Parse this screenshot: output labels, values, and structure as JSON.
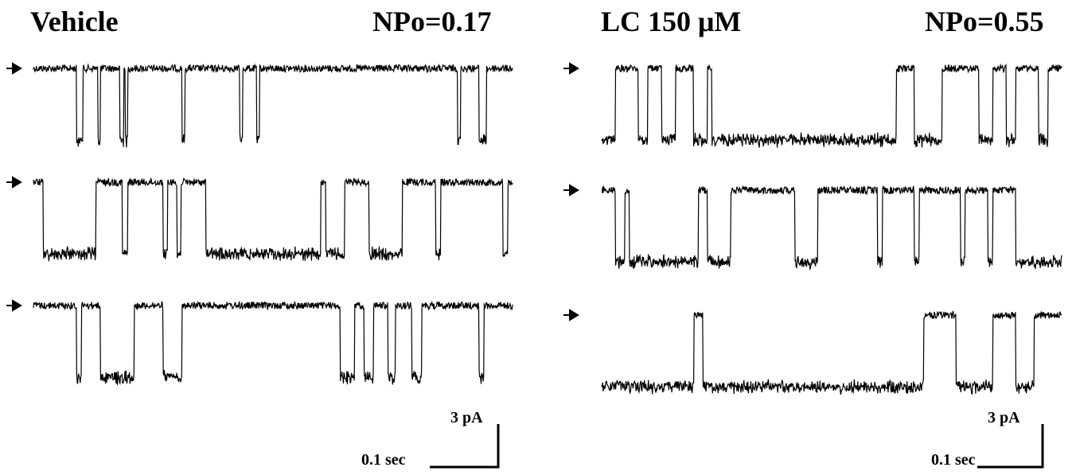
{
  "panels": [
    {
      "condition": "Vehicle",
      "npo_label": "NPo=0.17",
      "scale_current": "3 pA",
      "scale_time": "0.1 sec",
      "sweeps": [
        {
          "open_fraction": 0.1,
          "events": [
            [
              0.09,
              0.013
            ],
            [
              0.134,
              0.006
            ],
            [
              0.18,
              0.008
            ],
            [
              0.192,
              0.005
            ],
            [
              0.31,
              0.006
            ],
            [
              0.43,
              0.007
            ],
            [
              0.466,
              0.006
            ],
            [
              0.885,
              0.006
            ],
            [
              0.93,
              0.016
            ]
          ]
        },
        {
          "open_fraction": 0.4,
          "events": [
            [
              0.02,
              0.11
            ],
            [
              0.185,
              0.012
            ],
            [
              0.27,
              0.01
            ],
            [
              0.3,
              0.008
            ],
            [
              0.36,
              0.24
            ],
            [
              0.56,
              0.01
            ],
            [
              0.61,
              0.04
            ],
            [
              0.7,
              0.07
            ],
            [
              0.84,
              0.01
            ],
            [
              0.98,
              0.01
            ]
          ]
        },
        {
          "open_fraction": 0.25,
          "events": [
            [
              0.09,
              0.01
            ],
            [
              0.14,
              0.07
            ],
            [
              0.27,
              0.04
            ],
            [
              0.64,
              0.03
            ],
            [
              0.69,
              0.02
            ],
            [
              0.74,
              0.015
            ],
            [
              0.79,
              0.02
            ],
            [
              0.93,
              0.01
            ]
          ]
        }
      ]
    },
    {
      "condition": "LC 150 μM",
      "npo_label": "NPo=0.55",
      "scale_current": "3 pA",
      "scale_time": "0.1 sec",
      "sweeps": [
        {
          "open_fraction": 0.62,
          "events": [
            [
              0.0,
              0.03
            ],
            [
              0.08,
              0.02
            ],
            [
              0.13,
              0.03
            ],
            [
              0.2,
              0.03
            ],
            [
              0.24,
              0.4
            ],
            [
              0.68,
              0.06
            ],
            [
              0.82,
              0.03
            ],
            [
              0.88,
              0.02
            ],
            [
              0.95,
              0.02
            ]
          ]
        },
        {
          "open_fraction": 0.45,
          "events": [
            [
              0.03,
              0.02
            ],
            [
              0.06,
              0.15
            ],
            [
              0.23,
              0.05
            ],
            [
              0.42,
              0.05
            ],
            [
              0.6,
              0.01
            ],
            [
              0.68,
              0.01
            ],
            [
              0.78,
              0.01
            ],
            [
              0.84,
              0.01
            ],
            [
              0.9,
              0.1
            ]
          ]
        },
        {
          "open_fraction": 0.72,
          "events": [
            [
              0.0,
              0.2
            ],
            [
              0.22,
              0.48
            ],
            [
              0.77,
              0.08
            ],
            [
              0.9,
              0.04
            ]
          ]
        }
      ]
    }
  ],
  "arrow_symbol": "→"
}
